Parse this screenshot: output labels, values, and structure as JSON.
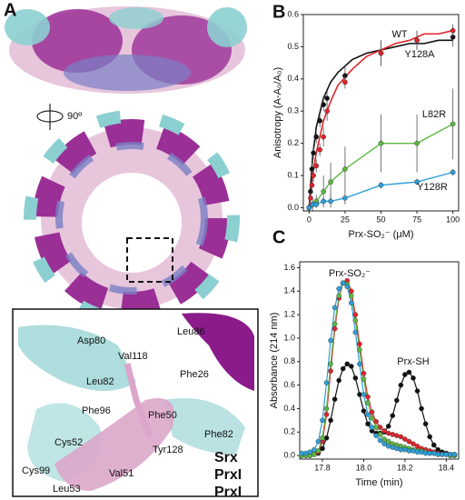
{
  "panel_labels": [
    "A",
    "B",
    "C"
  ],
  "panel_a": {
    "rotation": "90º",
    "residues": [
      "Asp80",
      "Val118",
      "Leu86",
      "Leu82",
      "Phe26",
      "Phe96",
      "Phe50",
      "Phe82",
      "Cys52",
      "Tyr128",
      "Cys99",
      "Val51",
      "Leu53"
    ],
    "legend": [
      {
        "text": "Srx",
        "color": "#7fcccf"
      },
      {
        "text": "PrxI",
        "color": "#8b1a8b"
      },
      {
        "text": "PrxI",
        "color": "#dba6c9"
      }
    ]
  },
  "chart_data": [
    {
      "type": "scatter",
      "x_label": "Prx-SO₂⁻ (μM)",
      "y_label": "Anisotropy (A-A₀/A₀)",
      "xlim": [
        -4,
        104
      ],
      "ylim": [
        -0.01,
        0.6
      ],
      "xticks": [
        0,
        25,
        50,
        75,
        100
      ],
      "yticks": [
        {
          "value": 0,
          "label": "0.0"
        },
        0.1,
        0.2,
        0.3,
        0.4,
        0.5,
        0.6
      ],
      "series": [
        {
          "name": "WT",
          "color": "#111111",
          "x": [
            0,
            1,
            2,
            3,
            5,
            7.5,
            10,
            12.5,
            25,
            50,
            75,
            100
          ],
          "values": [
            0,
            0.05,
            0.12,
            0.17,
            0.22,
            0.27,
            0.32,
            0.34,
            0.41,
            0.48,
            0.52,
            0.53
          ],
          "errors": [
            0.01,
            0.02,
            0.02,
            0.02,
            0.02,
            0.02,
            0.02,
            0.02,
            0.03,
            0.04,
            0.03,
            0.03
          ]
        },
        {
          "name": "Y128A",
          "color": "#e0242b",
          "x": [
            0,
            1,
            2,
            3,
            5,
            7.5,
            10,
            12.5,
            25,
            50,
            75,
            100
          ],
          "values": [
            0,
            0.03,
            0.07,
            0.1,
            0.13,
            0.18,
            0.22,
            0.3,
            0.39,
            0.48,
            0.52,
            0.55
          ],
          "errors": [
            0.01,
            0.02,
            0.02,
            0.02,
            0.02,
            0.02,
            0.03,
            0.03,
            0.02,
            0.04,
            0.03,
            0.02
          ]
        },
        {
          "name": "L82R",
          "color": "#5db843",
          "x": [
            0,
            2.5,
            5,
            10,
            15,
            25,
            50,
            75,
            100
          ],
          "values": [
            0,
            0.01,
            0.02,
            0.05,
            0.08,
            0.12,
            0.2,
            0.2,
            0.26
          ],
          "errors": [
            0.01,
            0.02,
            0.02,
            0.05,
            0.06,
            0.07,
            0.09,
            0.09,
            0.11
          ]
        },
        {
          "name": "Y128R",
          "color": "#2e9fd8",
          "x": [
            0,
            2.5,
            5,
            10,
            15,
            25,
            50,
            75,
            100
          ],
          "values": [
            0,
            0.01,
            0.01,
            0.02,
            0.02,
            0.03,
            0.07,
            0.08,
            0.11
          ],
          "errors": [
            0.01,
            0.01,
            0.01,
            0.01,
            0.02,
            0.02,
            0.01,
            0.01,
            0.01
          ]
        }
      ],
      "fits": [
        {
          "color": "#111111",
          "x": [
            0,
            2.5,
            5,
            10,
            15,
            20,
            30,
            40,
            50,
            60,
            70,
            80,
            90,
            100
          ],
          "values": [
            0,
            0.16,
            0.25,
            0.34,
            0.39,
            0.42,
            0.46,
            0.48,
            0.49,
            0.5,
            0.51,
            0.51,
            0.52,
            0.52
          ]
        },
        {
          "color": "#e0242b",
          "x": [
            0,
            2.5,
            5,
            10,
            15,
            20,
            30,
            40,
            50,
            60,
            70,
            80,
            90,
            100
          ],
          "values": [
            0,
            0.1,
            0.17,
            0.27,
            0.33,
            0.38,
            0.43,
            0.47,
            0.49,
            0.51,
            0.52,
            0.54,
            0.54,
            0.55
          ]
        }
      ]
    },
    {
      "type": "line",
      "x_label": "Time (min)",
      "y_label": "Absorbance (214 nm)",
      "annotations": [
        "Prx-SO₂⁻",
        "Prx-SH"
      ],
      "xlim": [
        17.69,
        18.46
      ],
      "ylim": [
        -0.03,
        1.65
      ],
      "xticks": [
        17.8,
        {
          "value": 18,
          "label": "18.0"
        },
        18.2,
        18.4
      ],
      "yticks": [
        {
          "value": 0,
          "label": "0.0"
        },
        0.2,
        0.4,
        0.6,
        0.8,
        {
          "value": 1,
          "label": "1.0"
        },
        1.2,
        1.4,
        1.6
      ],
      "x": [
        17.7,
        17.72,
        17.74,
        17.76,
        17.78,
        17.8,
        17.82,
        17.84,
        17.86,
        17.88,
        17.9,
        17.92,
        17.94,
        17.96,
        17.98,
        18,
        18.02,
        18.04,
        18.06,
        18.08,
        18.1,
        18.12,
        18.14,
        18.16,
        18.18,
        18.2,
        18.22,
        18.24,
        18.26,
        18.28,
        18.3,
        18.32,
        18.34,
        18.36,
        18.38,
        18.4,
        18.42,
        18.44
      ],
      "series": [
        {
          "color": "#111111",
          "values": [
            0,
            0,
            0,
            0.01,
            0.02,
            0.06,
            0.15,
            0.3,
            0.48,
            0.64,
            0.74,
            0.78,
            0.76,
            0.66,
            0.52,
            0.38,
            0.27,
            0.21,
            0.19,
            0.19,
            0.2,
            0.25,
            0.34,
            0.47,
            0.6,
            0.69,
            0.71,
            0.66,
            0.55,
            0.4,
            0.27,
            0.16,
            0.09,
            0.05,
            0.03,
            0.02,
            0.01,
            0.01
          ]
        },
        {
          "color": "#e0242b",
          "values": [
            0,
            0,
            0,
            0.01,
            0.03,
            0.12,
            0.35,
            0.72,
            1.08,
            1.34,
            1.47,
            1.49,
            1.4,
            1.2,
            0.95,
            0.7,
            0.5,
            0.37,
            0.29,
            0.24,
            0.21,
            0.19,
            0.18,
            0.17,
            0.16,
            0.14,
            0.12,
            0.1,
            0.08,
            0.06,
            0.05,
            0.04,
            0.03,
            0.02,
            0.01,
            0.01,
            0,
            0
          ]
        },
        {
          "color": "#5db843",
          "values": [
            0,
            0,
            0,
            0.01,
            0.04,
            0.15,
            0.4,
            0.78,
            1.12,
            1.36,
            1.47,
            1.46,
            1.36,
            1.15,
            0.9,
            0.65,
            0.45,
            0.32,
            0.24,
            0.18,
            0.14,
            0.12,
            0.1,
            0.09,
            0.08,
            0.07,
            0.06,
            0.05,
            0.04,
            0.04,
            0.03,
            0.02,
            0.02,
            0.01,
            0.01,
            0.01,
            0,
            0
          ]
        },
        {
          "color": "#2e9fd8",
          "values": [
            0.02,
            0.02,
            0.03,
            0.05,
            0.12,
            0.3,
            0.62,
            0.98,
            1.26,
            1.42,
            1.47,
            1.44,
            1.3,
            1.05,
            0.78,
            0.52,
            0.35,
            0.24,
            0.17,
            0.13,
            0.1,
            0.08,
            0.07,
            0.06,
            0.05,
            0.05,
            0.04,
            0.04,
            0.03,
            0.03,
            0.02,
            0.02,
            0.02,
            0.01,
            0.01,
            0.01,
            0.01,
            0.01
          ]
        }
      ]
    }
  ]
}
